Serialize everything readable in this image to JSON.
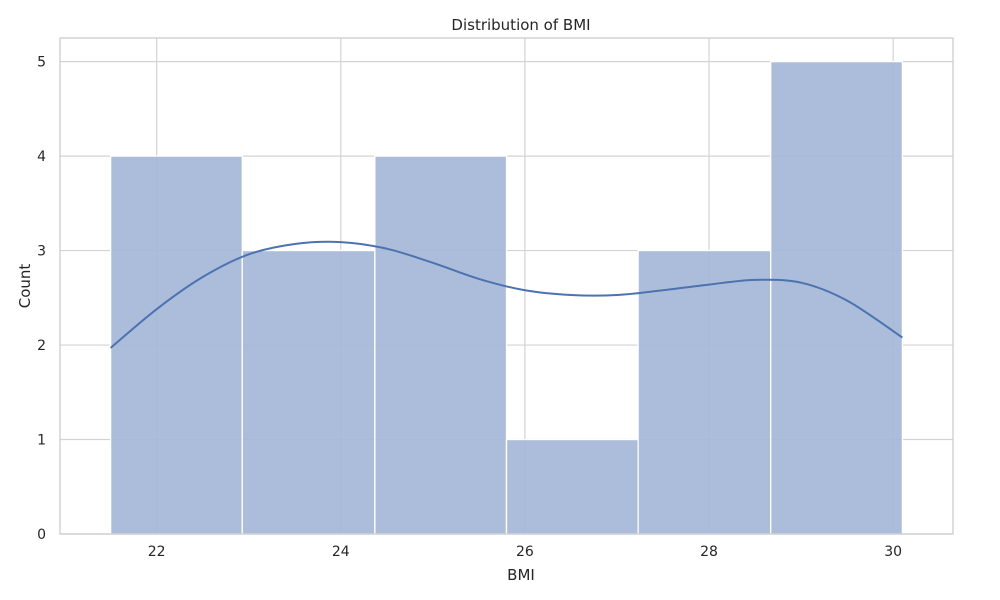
{
  "chart_data": {
    "type": "bar",
    "subtype": "histogram-with-kde",
    "title": "Distribution of BMI",
    "xlabel": "BMI",
    "ylabel": "Count",
    "xlim": [
      20.95,
      30.65
    ],
    "ylim": [
      0,
      5.25
    ],
    "xticks": [
      22,
      24,
      26,
      28,
      30
    ],
    "yticks": [
      0,
      1,
      2,
      3,
      4,
      5
    ],
    "grid": true,
    "bin_edges": [
      21.5,
      22.93,
      24.37,
      25.8,
      27.23,
      28.67,
      30.1
    ],
    "values": [
      4,
      3,
      4,
      1,
      3,
      5
    ],
    "kde": {
      "x": [
        21.5,
        22.0,
        22.5,
        23.0,
        23.5,
        24.0,
        24.5,
        25.0,
        25.5,
        26.0,
        26.5,
        27.0,
        27.5,
        28.0,
        28.5,
        29.0,
        29.5,
        30.1
      ],
      "y": [
        1.97,
        2.38,
        2.72,
        2.96,
        3.07,
        3.09,
        3.02,
        2.87,
        2.7,
        2.58,
        2.53,
        2.53,
        2.58,
        2.64,
        2.69,
        2.66,
        2.47,
        2.08
      ]
    },
    "colors": {
      "bar_fill": "#a4b7d7",
      "kde_line": "#4c72b0",
      "grid": "#d3d3d6",
      "spine": "#cccccc"
    }
  }
}
